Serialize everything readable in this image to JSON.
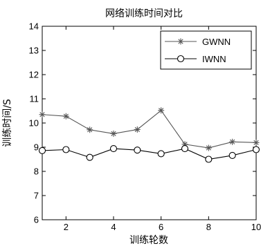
{
  "chart_data": {
    "type": "line",
    "title": "网络训练时间对比",
    "xlabel": "训练轮数",
    "ylabel": "训练时间/S",
    "xlim": [
      1,
      10
    ],
    "ylim": [
      6,
      14
    ],
    "xticks": [
      2,
      4,
      6,
      8,
      10
    ],
    "yticks": [
      6,
      7,
      8,
      9,
      10,
      11,
      12,
      13,
      14
    ],
    "grid": false,
    "legend_position": "top-right",
    "x": [
      1,
      2,
      3,
      4,
      5,
      6,
      7,
      8,
      9,
      10
    ],
    "series": [
      {
        "name": "GWNN",
        "marker": "star",
        "color": "#555555",
        "values": [
          10.35,
          10.28,
          9.72,
          9.56,
          9.73,
          10.52,
          9.12,
          8.97,
          9.22,
          9.19
        ]
      },
      {
        "name": "IWNN",
        "marker": "circle",
        "color": "#000000",
        "values": [
          8.86,
          8.9,
          8.58,
          8.94,
          8.88,
          8.73,
          8.94,
          8.5,
          8.66,
          8.9
        ]
      }
    ]
  }
}
